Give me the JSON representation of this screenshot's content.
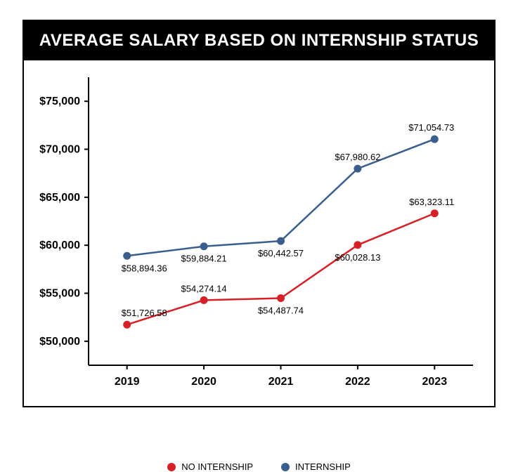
{
  "title": "AVERAGE SALARY BASED ON INTERNSHIP STATUS",
  "chart": {
    "type": "line",
    "background_color": "#ffffff",
    "axis_color": "#000000",
    "grid": false,
    "title_fontsize": 24,
    "label_fontsize": 13,
    "tick_fontsize": 16,
    "line_width": 2.5,
    "marker_radius": 5.5,
    "x": {
      "categories": [
        "2019",
        "2020",
        "2021",
        "2022",
        "2023"
      ],
      "fontweight": 700
    },
    "y": {
      "ylim": [
        47500,
        77500
      ],
      "ticks": [
        50000,
        55000,
        60000,
        65000,
        70000,
        75000
      ],
      "tick_labels": [
        "$50,000",
        "$55,000",
        "$60,000",
        "$65,000",
        "$70,000",
        "$75,000"
      ],
      "fontweight": 700
    },
    "series": [
      {
        "name": "NO INTERNSHIP",
        "color": "#d62027",
        "values": [
          51726.58,
          54274.14,
          54487.74,
          60028.13,
          63323.11
        ],
        "value_labels": [
          "$51,726.58",
          "$54,274.14",
          "$54,487.74",
          "$60,028.13",
          "$63,323.11"
        ],
        "label_pos": [
          "above",
          "above",
          "below",
          "below",
          "above"
        ]
      },
      {
        "name": "INTERNSHIP",
        "color": "#3a5e8c",
        "values": [
          58894.36,
          59884.21,
          60442.57,
          67980.62,
          71054.73
        ],
        "value_labels": [
          "$58,894.36",
          "$59,884.21",
          "$60,442.57",
          "$67,980.62",
          "$71,054.73"
        ],
        "label_pos": [
          "below",
          "below",
          "below",
          "above",
          "above"
        ]
      }
    ],
    "legend": {
      "items": [
        "NO INTERNSHIP",
        "INTERNSHIP"
      ],
      "position": "bottom"
    }
  }
}
